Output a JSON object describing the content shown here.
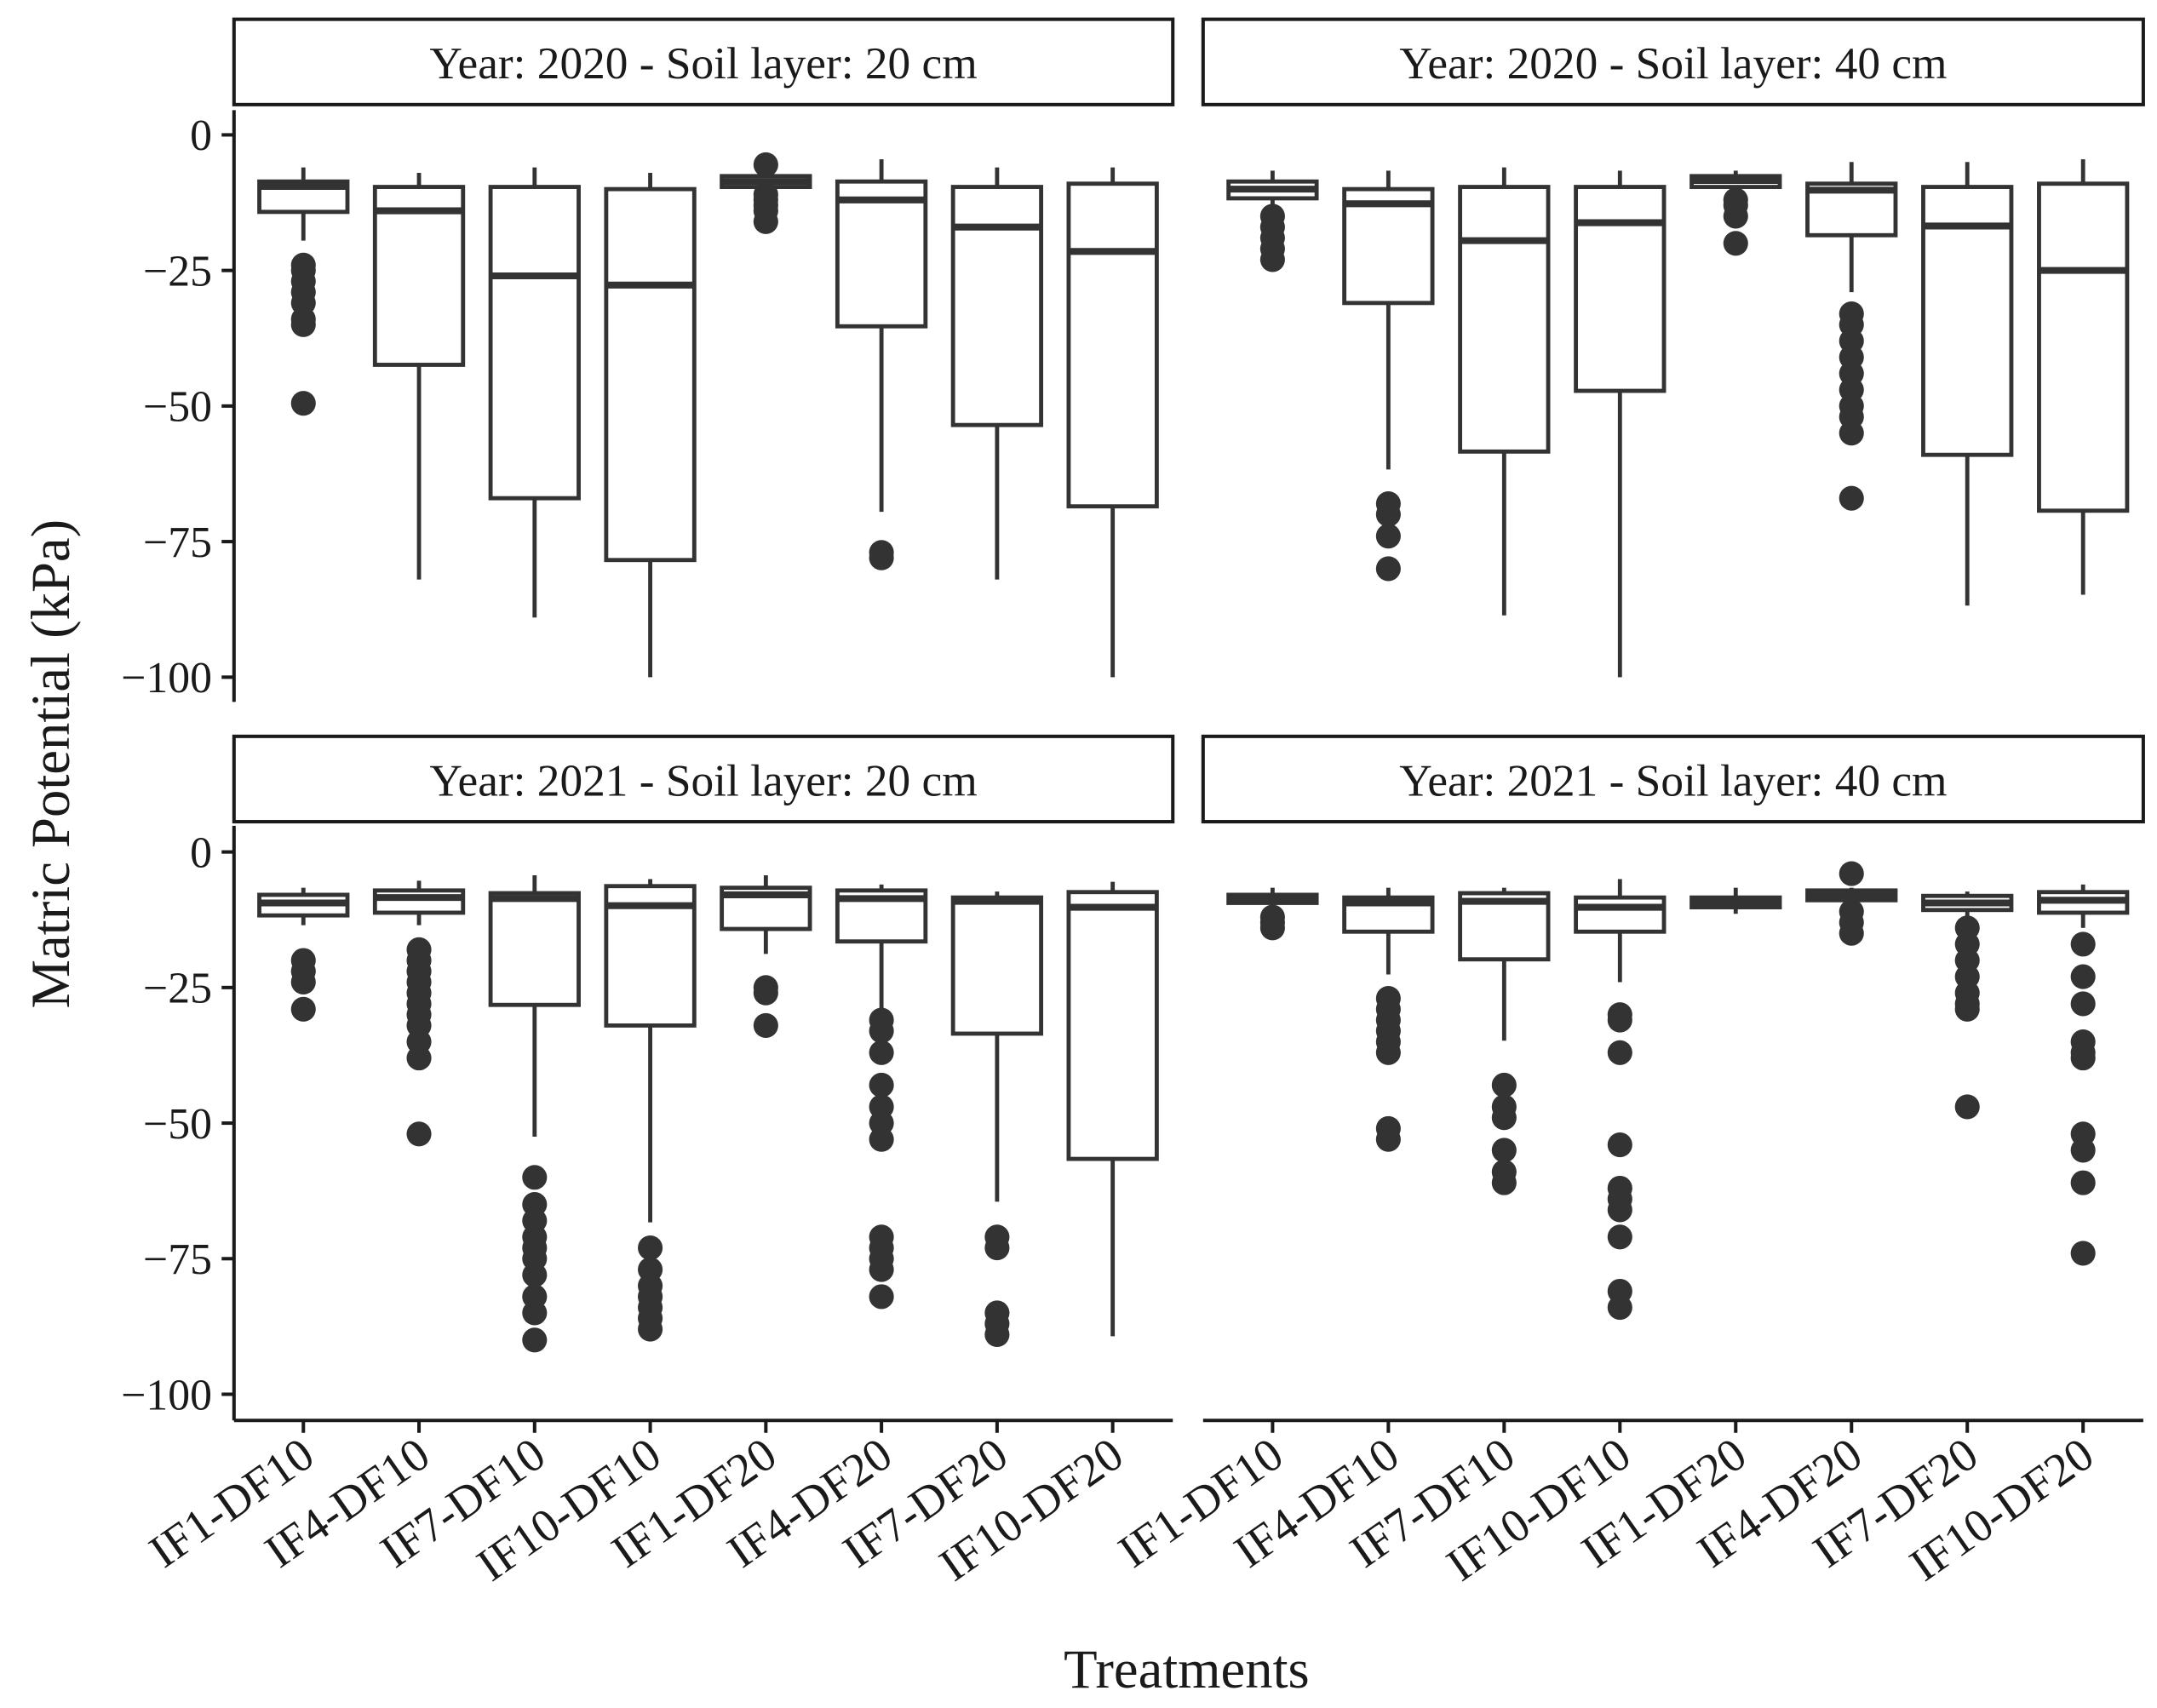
{
  "chart_data": {
    "type": "box",
    "xlabel": "Treatments",
    "ylabel": "Matric Potential (kPa)",
    "ylim": [
      -100,
      0
    ],
    "yticks": [
      0,
      -25,
      -50,
      -75,
      -100
    ],
    "ytick_labels": [
      "0",
      "−25",
      "−50",
      "−75",
      "−100"
    ],
    "categories": [
      "IF1-DF10",
      "IF4-DF10",
      "IF7-DF10",
      "IF10-DF10",
      "IF1-DF20",
      "IF4-DF20",
      "IF7-DF20",
      "IF10-DF20"
    ],
    "grid": false,
    "panels": [
      {
        "title": "Year: 2020 - Soil layer: 20 cm",
        "boxes": [
          {
            "hi": -6,
            "q3": -8.6,
            "med": -9.5,
            "q1": -14.2,
            "lo": -19.5,
            "out": [
              -24,
              -25,
              -27,
              -29,
              -31,
              -34,
              -35,
              -49.5
            ]
          },
          {
            "hi": -7,
            "q3": -9.6,
            "med": -14,
            "q1": -42.4,
            "lo": -82,
            "out": []
          },
          {
            "hi": -6,
            "q3": -9.6,
            "med": -26,
            "q1": -67,
            "lo": -89,
            "out": []
          },
          {
            "hi": -7,
            "q3": -10,
            "med": -27.7,
            "q1": -78.4,
            "lo": -100,
            "out": []
          },
          {
            "hi": -6,
            "q3": -7.6,
            "med": -8.6,
            "q1": -9.6,
            "lo": -10.7,
            "out": [
              -5.5,
              -11,
              -12,
              -13,
              -14,
              -16
            ]
          },
          {
            "hi": -4.5,
            "q3": -8.6,
            "med": -12,
            "q1": -35.3,
            "lo": -69.5,
            "out": [
              -77,
              -78
            ]
          },
          {
            "hi": -6,
            "q3": -9.6,
            "med": -17,
            "q1": -53.5,
            "lo": -82,
            "out": []
          },
          {
            "hi": -6,
            "q3": -9,
            "med": -21.5,
            "q1": -68.5,
            "lo": -100,
            "out": []
          }
        ]
      },
      {
        "title": "Year: 2020 - Soil layer: 40 cm",
        "boxes": [
          {
            "hi": -6.6,
            "q3": -8.6,
            "med": -10,
            "q1": -11.7,
            "lo": -13,
            "out": [
              -15,
              -17,
              -19,
              -21,
              -23
            ]
          },
          {
            "hi": -6.6,
            "q3": -10,
            "med": -12.7,
            "q1": -31,
            "lo": -61.7,
            "out": [
              -68,
              -70,
              -74,
              -80
            ]
          },
          {
            "hi": -6,
            "q3": -9.6,
            "med": -19.5,
            "q1": -58.4,
            "lo": -88.6,
            "out": []
          },
          {
            "hi": -6.6,
            "q3": -9.6,
            "med": -16.2,
            "q1": -47.2,
            "lo": -100,
            "out": []
          },
          {
            "hi": -6.6,
            "q3": -7.6,
            "med": -8.4,
            "q1": -9.6,
            "lo": -10.7,
            "out": [
              -12,
              -13,
              -15,
              -20
            ]
          },
          {
            "hi": -5,
            "q3": -9,
            "med": -10.2,
            "q1": -18.5,
            "lo": -29,
            "out": [
              -33,
              -35,
              -38,
              -41,
              -44,
              -47,
              -50,
              -52,
              -55,
              -67
            ]
          },
          {
            "hi": -5,
            "q3": -9.6,
            "med": -16.8,
            "q1": -59,
            "lo": -86.8,
            "out": []
          },
          {
            "hi": -4.5,
            "q3": -9,
            "med": -25,
            "q1": -69.3,
            "lo": -84.8,
            "out": []
          }
        ]
      },
      {
        "title": "Year: 2021 - Soil layer: 20 cm",
        "boxes": [
          {
            "hi": -6.6,
            "q3": -7.9,
            "med": -9.4,
            "q1": -11.7,
            "lo": -13.5,
            "out": [
              -20,
              -22,
              -24,
              -29
            ]
          },
          {
            "hi": -5.3,
            "q3": -7.1,
            "med": -8.4,
            "q1": -11.2,
            "lo": -13.5,
            "out": [
              -18,
              -20,
              -22,
              -24,
              -26,
              -28,
              -30,
              -32,
              -35,
              -38,
              -52
            ]
          },
          {
            "hi": -4.3,
            "q3": -7.6,
            "med": -8.6,
            "q1": -28.2,
            "lo": -52.5,
            "out": [
              -60,
              -65,
              -68,
              -71,
              -73,
              -75,
              -78,
              -82,
              -85,
              -90
            ]
          },
          {
            "hi": -5,
            "q3": -6.3,
            "med": -9.9,
            "q1": -32,
            "lo": -68.3,
            "out": [
              -73,
              -77,
              -80,
              -82,
              -84,
              -86,
              -88
            ]
          },
          {
            "hi": -4.3,
            "q3": -6.6,
            "med": -7.9,
            "q1": -14.2,
            "lo": -18.8,
            "out": [
              -25,
              -26,
              -32
            ]
          },
          {
            "hi": -6,
            "q3": -7.1,
            "med": -8.6,
            "q1": -16.5,
            "lo": -29,
            "out": [
              -31,
              -33,
              -37,
              -43,
              -47,
              -50,
              -53,
              -71,
              -73,
              -75,
              -77,
              -82
            ]
          },
          {
            "hi": -7.3,
            "q3": -8.4,
            "med": -9.1,
            "q1": -33.5,
            "lo": -64.5,
            "out": [
              -71,
              -73,
              -85,
              -87,
              -89
            ]
          },
          {
            "hi": -5.5,
            "q3": -7.4,
            "med": -10.2,
            "q1": -56.6,
            "lo": -89.3,
            "out": []
          }
        ]
      },
      {
        "title": "Year: 2021 - Soil layer: 40 cm",
        "boxes": [
          {
            "hi": -6.6,
            "q3": -7.9,
            "med": -8.6,
            "q1": -9.4,
            "lo": -10.2,
            "out": [
              -12,
              -13,
              -14
            ]
          },
          {
            "hi": -6.6,
            "q3": -8.4,
            "med": -9.4,
            "q1": -14.7,
            "lo": -22.6,
            "out": [
              -27,
              -29,
              -31,
              -33,
              -35,
              -37,
              -51,
              -53
            ]
          },
          {
            "hi": -6.6,
            "q3": -7.6,
            "med": -9.1,
            "q1": -19.8,
            "lo": -34.8,
            "out": [
              -43,
              -47,
              -49,
              -55,
              -59,
              -61
            ]
          },
          {
            "hi": -5,
            "q3": -8.4,
            "med": -10.2,
            "q1": -14.7,
            "lo": -24,
            "out": [
              -30,
              -31,
              -37,
              -54,
              -62,
              -64,
              -66,
              -71,
              -81,
              -84
            ]
          },
          {
            "hi": -6.6,
            "q3": -8.4,
            "med": -9.4,
            "q1": -10.2,
            "lo": -11.4,
            "out": []
          },
          {
            "hi": -6.6,
            "q3": -7.1,
            "med": -7.9,
            "q1": -8.9,
            "lo": -9.6,
            "out": [
              -4,
              -11,
              -13,
              -15
            ]
          },
          {
            "hi": -7.3,
            "q3": -8.1,
            "med": -9.4,
            "q1": -10.7,
            "lo": -12,
            "out": [
              -14,
              -17,
              -20,
              -23,
              -26,
              -28,
              -29,
              -47
            ]
          },
          {
            "hi": -6,
            "q3": -7.4,
            "med": -8.9,
            "q1": -11.2,
            "lo": -14,
            "out": [
              -17,
              -23,
              -28,
              -35,
              -37,
              -38,
              -52,
              -55,
              -61,
              -74
            ]
          }
        ]
      }
    ]
  }
}
